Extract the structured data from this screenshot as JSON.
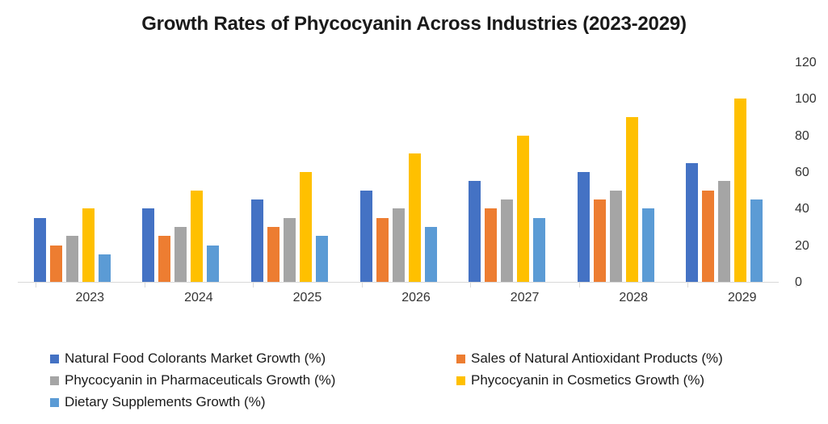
{
  "title": "Growth Rates of Phycocyanin Across Industries (2023-2029)",
  "chart_data": {
    "type": "bar",
    "title": "Growth Rates of Phycocyanin Across Industries (2023-2029)",
    "categories": [
      "2023",
      "2024",
      "2025",
      "2026",
      "2027",
      "2028",
      "2029"
    ],
    "series": [
      {
        "name": "Natural Food Colorants Market Growth (%)",
        "color": "#4472C4",
        "values": [
          35,
          40,
          45,
          50,
          55,
          60,
          65
        ]
      },
      {
        "name": "Sales of Natural Antioxidant Products (%)",
        "color": "#ED7D31",
        "values": [
          20,
          25,
          30,
          35,
          40,
          45,
          50
        ]
      },
      {
        "name": "Phycocyanin in Pharmaceuticals Growth (%)",
        "color": "#A5A5A5",
        "values": [
          25,
          30,
          35,
          40,
          45,
          50,
          55
        ]
      },
      {
        "name": "Phycocyanin in Cosmetics Growth (%)",
        "color": "#FFC000",
        "values": [
          40,
          50,
          60,
          70,
          80,
          90,
          100
        ]
      },
      {
        "name": "Dietary Supplements Growth (%)",
        "color": "#5B9BD5",
        "values": [
          15,
          20,
          25,
          30,
          35,
          40,
          45
        ]
      }
    ],
    "y_axis": {
      "min": 0,
      "max": 120,
      "step": 20,
      "ticks": [
        0,
        20,
        40,
        60,
        80,
        100,
        120
      ],
      "position": "right"
    },
    "xlabel": "",
    "ylabel": "",
    "grid": false,
    "legend_position": "bottom",
    "legend_columns": 2
  },
  "colors": {
    "background": "#FFFFFF",
    "axis_line": "#D9D9D9",
    "title_text": "#1A1A1A",
    "axis_text": "#333333",
    "legend_text": "#1A1A1A"
  }
}
